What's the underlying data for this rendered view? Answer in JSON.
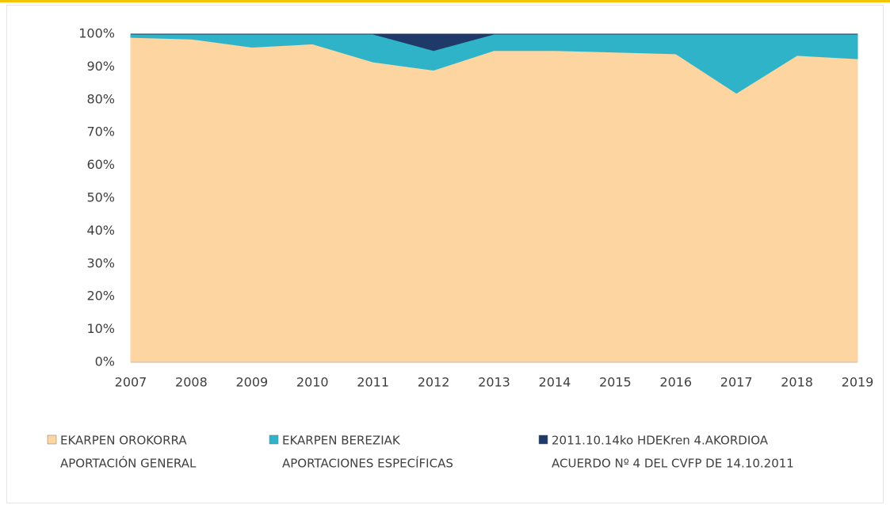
{
  "chart_data": {
    "type": "area",
    "stacked": true,
    "categories": [
      "2007",
      "2008",
      "2009",
      "2010",
      "2011",
      "2012",
      "2013",
      "2014",
      "2015",
      "2016",
      "2017",
      "2018",
      "2019"
    ],
    "series": [
      {
        "name": [
          "EKARPEN OROKORRA",
          "APORTACIÓN GENERAL"
        ],
        "color": "#fcd5a0",
        "values": [
          99,
          98.5,
          96,
          97,
          91.5,
          89,
          95,
          95,
          94.5,
          94,
          82,
          93.5,
          92.5
        ]
      },
      {
        "name": [
          "EKARPEN BEREZIAK",
          "APORTACIONES ESPECÍFICAS"
        ],
        "color": "#2fb3c8",
        "values": [
          1,
          1.5,
          4,
          3,
          8.5,
          6,
          5,
          5,
          5.5,
          6,
          18,
          6.5,
          7.5
        ]
      },
      {
        "name": [
          "2011.10.14ko HDEKren 4.AKORDIOA",
          "ACUERDO Nº 4 DEL CVFP DE 14.10.2011"
        ],
        "color": "#1f3a68",
        "values": [
          0,
          0,
          0,
          0,
          0,
          5,
          0,
          0,
          0,
          0,
          0,
          0,
          0
        ]
      }
    ],
    "ylim": [
      0,
      100
    ],
    "yticks": [
      {
        "value": 0,
        "label": "0%"
      },
      {
        "value": 10,
        "label": "10%"
      },
      {
        "value": 20,
        "label": "20%"
      },
      {
        "value": 30,
        "label": "30%"
      },
      {
        "value": 40,
        "label": "40%"
      },
      {
        "value": 50,
        "label": "50%"
      },
      {
        "value": 60,
        "label": "60%"
      },
      {
        "value": 70,
        "label": "70%"
      },
      {
        "value": 80,
        "label": "80%"
      },
      {
        "value": 90,
        "label": "90%"
      },
      {
        "value": 100,
        "label": "100%"
      }
    ],
    "legend": "bottom"
  }
}
